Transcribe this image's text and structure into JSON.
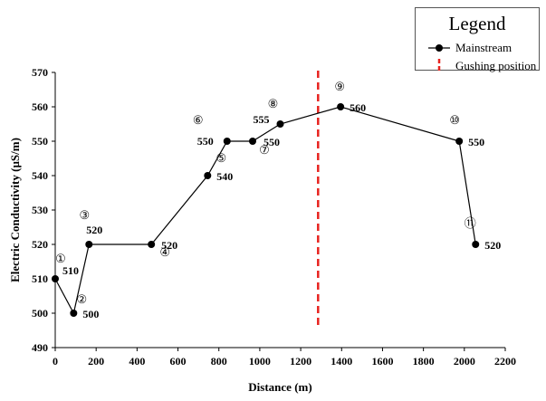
{
  "chart_data": {
    "type": "line",
    "xlabel": "Distance (m)",
    "ylabel": "Electric Conductivity (µS/m)",
    "xlim": [
      0,
      2200
    ],
    "ylim": [
      490,
      570
    ],
    "xticks": [
      "0",
      "200",
      "400",
      "600",
      "800",
      "1000",
      "1200",
      "1400",
      "1600",
      "1800",
      "2000",
      "2200"
    ],
    "yticks": [
      "490",
      "500",
      "510",
      "520",
      "530",
      "540",
      "550",
      "560",
      "570"
    ],
    "series": [
      {
        "name": "Mainstream",
        "color": "#000000",
        "x": [
          0,
          90,
          165,
          470,
          745,
          840,
          965,
          1100,
          1395,
          1975,
          2055
        ],
        "y": [
          510,
          500,
          520,
          520,
          540,
          550,
          550,
          555,
          560,
          550,
          520
        ],
        "point_labels": [
          "①",
          "②",
          "③",
          "④",
          "⑤",
          "⑥",
          "⑦",
          "⑧",
          "⑨",
          "⑩",
          "⑪"
        ],
        "value_labels": [
          "510",
          "500",
          "520",
          "520",
          "540",
          "550",
          "550",
          "555",
          "560",
          "550",
          "520"
        ]
      }
    ],
    "gushing_position_x": 1285,
    "gushing_color": "#e8231f",
    "legend": {
      "title": "Legend",
      "position": "top-right",
      "entries": [
        "Mainstream",
        "Gushing position"
      ]
    },
    "grid": false
  }
}
